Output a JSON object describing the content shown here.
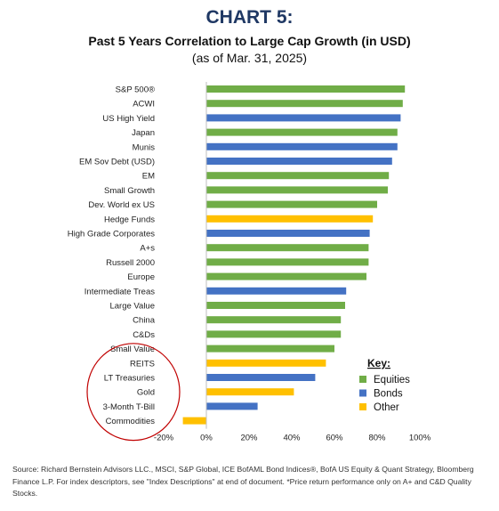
{
  "header": {
    "title": "CHART 5:",
    "subtitle": "Past 5 Years Correlation to Large Cap Growth (in USD)",
    "subtitle2": "(as of Mar. 31, 2025)"
  },
  "chart_data": {
    "type": "bar",
    "orientation": "horizontal",
    "categories": [
      "S&P 500®",
      "ACWI",
      "US High Yield",
      "Japan",
      "Munis",
      "EM Sov Debt (USD)",
      "EM",
      "Small Growth",
      "Dev. World ex US",
      "Hedge Funds",
      "High Grade Corporates",
      "A+s",
      "Russell 2000",
      "Europe",
      "Intermediate Treas",
      "Large Value",
      "China",
      "C&Ds",
      "Small Value",
      "REITS",
      "LT Treasuries",
      "Gold",
      "3-Month T-Bill",
      "Commodities"
    ],
    "values": [
      0.93,
      0.92,
      0.91,
      0.895,
      0.895,
      0.87,
      0.855,
      0.85,
      0.8,
      0.78,
      0.765,
      0.76,
      0.76,
      0.75,
      0.655,
      0.65,
      0.63,
      0.63,
      0.6,
      0.56,
      0.51,
      0.41,
      0.24,
      -0.11
    ],
    "groups": [
      "Equities",
      "Equities",
      "Bonds",
      "Equities",
      "Bonds",
      "Bonds",
      "Equities",
      "Equities",
      "Equities",
      "Other",
      "Bonds",
      "Equities",
      "Equities",
      "Equities",
      "Bonds",
      "Equities",
      "Equities",
      "Equities",
      "Equities",
      "Other",
      "Bonds",
      "Other",
      "Bonds",
      "Other"
    ],
    "xlim": [
      -0.2,
      1.0
    ],
    "xticks": [
      -0.2,
      0,
      0.2,
      0.4,
      0.6,
      0.8,
      1.0
    ],
    "xtick_labels": [
      "-20%",
      "0%",
      "20%",
      "40%",
      "60%",
      "80%",
      "100%"
    ],
    "grid": false,
    "legend": {
      "title": "Key:",
      "placement": "bottom-right",
      "entries": [
        {
          "name": "Equities",
          "color": "#70ad47"
        },
        {
          "name": "Bonds",
          "color": "#4472c4"
        },
        {
          "name": "Other",
          "color": "#ffc000"
        }
      ]
    },
    "highlight": {
      "shape": "ellipse",
      "color": "#c00000",
      "items": [
        "REITS",
        "LT Treasuries",
        "Gold",
        "3-Month T-Bill",
        "Commodities"
      ]
    }
  },
  "source": "Source: Richard Bernstein Advisors LLC., MSCI, S&P Global, ICE BofAML Bond Indices®, BofA US Equity & Quant Strategy, Bloomberg Finance L.P. For index descriptors, see \"Index Descriptions\" at end of document. *Price return performance only on A+ and C&D Quality Stocks."
}
